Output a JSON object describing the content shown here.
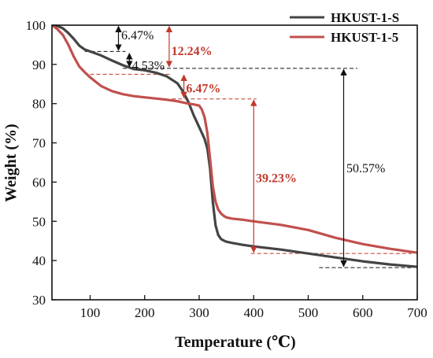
{
  "chart_data": {
    "type": "line",
    "xlabel": "Temperature (℃)",
    "ylabel": "Weight (%)",
    "xlim": [
      30,
      700
    ],
    "ylim": [
      30,
      100
    ],
    "x_ticks": [
      100,
      200,
      300,
      400,
      500,
      600,
      700
    ],
    "y_ticks": [
      30,
      40,
      50,
      60,
      70,
      80,
      90,
      100
    ],
    "x_tick_labels": [
      "100",
      "200",
      "300",
      "400",
      "500",
      "600",
      "700"
    ],
    "y_tick_labels": [
      "30",
      "40",
      "50",
      "60",
      "70",
      "80",
      "90",
      "100"
    ],
    "legend_position": "top-right",
    "series": [
      {
        "name": "HKUST-1-S",
        "color": "#444444",
        "x": [
          30,
          40,
          50,
          60,
          70,
          80,
          90,
          100,
          120,
          140,
          160,
          180,
          200,
          220,
          240,
          260,
          270,
          280,
          290,
          300,
          310,
          315,
          320,
          325,
          330,
          335,
          340,
          345,
          350,
          360,
          380,
          400,
          450,
          500,
          550,
          600,
          650,
          700
        ],
        "y": [
          100,
          99.8,
          99.2,
          98.0,
          96.5,
          94.8,
          93.8,
          93.3,
          92.3,
          91.0,
          89.8,
          88.8,
          88.5,
          87.9,
          87.0,
          85.2,
          83.2,
          80.5,
          77.0,
          74.0,
          71.0,
          68.5,
          63.5,
          55.0,
          49.0,
          46.5,
          45.5,
          45.1,
          44.8,
          44.5,
          44.0,
          43.6,
          42.8,
          41.8,
          40.8,
          39.8,
          39.0,
          38.4
        ]
      },
      {
        "name": "HKUST-1-5",
        "color": "#c0504d",
        "x": [
          30,
          40,
          50,
          60,
          70,
          80,
          90,
          100,
          120,
          140,
          160,
          180,
          200,
          220,
          240,
          260,
          270,
          280,
          290,
          300,
          305,
          310,
          315,
          320,
          325,
          330,
          335,
          340,
          345,
          350,
          360,
          380,
          400,
          450,
          500,
          550,
          600,
          650,
          700
        ],
        "y": [
          100,
          99.0,
          97.5,
          95.0,
          92.0,
          89.5,
          88.0,
          86.7,
          84.5,
          83.2,
          82.4,
          81.9,
          81.6,
          81.3,
          81.0,
          80.6,
          80.3,
          80.0,
          79.8,
          79.5,
          78.5,
          76.5,
          72.5,
          66.0,
          59.0,
          55.0,
          53.0,
          52.0,
          51.4,
          51.0,
          50.7,
          50.4,
          50.0,
          49.1,
          47.8,
          45.8,
          44.2,
          43.0,
          42.0
        ]
      }
    ],
    "annotations": [
      {
        "text": "6.47%",
        "color": "#111111"
      },
      {
        "text": "4.53%",
        "color": "#111111"
      },
      {
        "text": "12.24%",
        "color": "#c0392b"
      },
      {
        "text": "6.47%",
        "color": "#c0392b"
      },
      {
        "text": "39.23%",
        "color": "#c0392b"
      },
      {
        "text": "50.57%",
        "color": "#111111"
      }
    ]
  }
}
